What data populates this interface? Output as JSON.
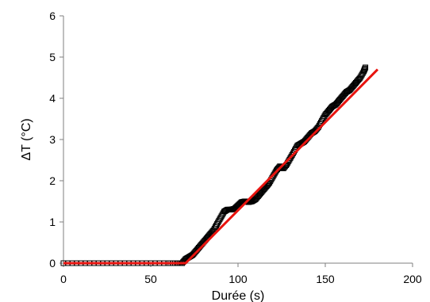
{
  "chart_data": {
    "type": "scatter",
    "xlabel": "Durée (s)",
    "ylabel": "ΔT (°C)",
    "xlim": [
      0,
      200
    ],
    "ylim": [
      0,
      6
    ],
    "x_ticks": [
      "0",
      "50",
      "100",
      "150",
      "200"
    ],
    "y_ticks": [
      "0",
      "1",
      "2",
      "3",
      "4",
      "5",
      "6"
    ],
    "grid": false,
    "legend": "none",
    "series": [
      {
        "kind": "measured",
        "marker": "open-square",
        "color": "#000000",
        "x": [
          0,
          10,
          20,
          30,
          40,
          50,
          60,
          65,
          68,
          70,
          72,
          74,
          76,
          78,
          80,
          82,
          84,
          86,
          88,
          90,
          92,
          94,
          96,
          98,
          100,
          102,
          104,
          106,
          108,
          110,
          112,
          114,
          116,
          118,
          120,
          122,
          124,
          126,
          128,
          130,
          132,
          134,
          136,
          138,
          140,
          142,
          144,
          146,
          148,
          150,
          152,
          154,
          156,
          158,
          160,
          162,
          164,
          166,
          168,
          170,
          172,
          173
        ],
        "y": [
          0,
          0,
          0,
          0,
          0,
          0,
          0,
          0,
          0,
          0.1,
          0.15,
          0.2,
          0.3,
          0.4,
          0.5,
          0.6,
          0.7,
          0.8,
          0.95,
          1.1,
          1.25,
          1.3,
          1.3,
          1.32,
          1.4,
          1.48,
          1.5,
          1.48,
          1.5,
          1.55,
          1.65,
          1.75,
          1.85,
          1.95,
          2.1,
          2.25,
          2.35,
          2.3,
          2.4,
          2.55,
          2.7,
          2.85,
          2.9,
          2.95,
          3.05,
          3.15,
          3.2,
          3.3,
          3.45,
          3.6,
          3.7,
          3.8,
          3.85,
          3.95,
          4.05,
          4.15,
          4.2,
          4.3,
          4.4,
          4.5,
          4.65,
          4.75
        ]
      },
      {
        "kind": "fit",
        "color": "#e8140f",
        "x": [
          0,
          70,
          180
        ],
        "y": [
          0,
          0,
          4.7
        ]
      }
    ]
  }
}
